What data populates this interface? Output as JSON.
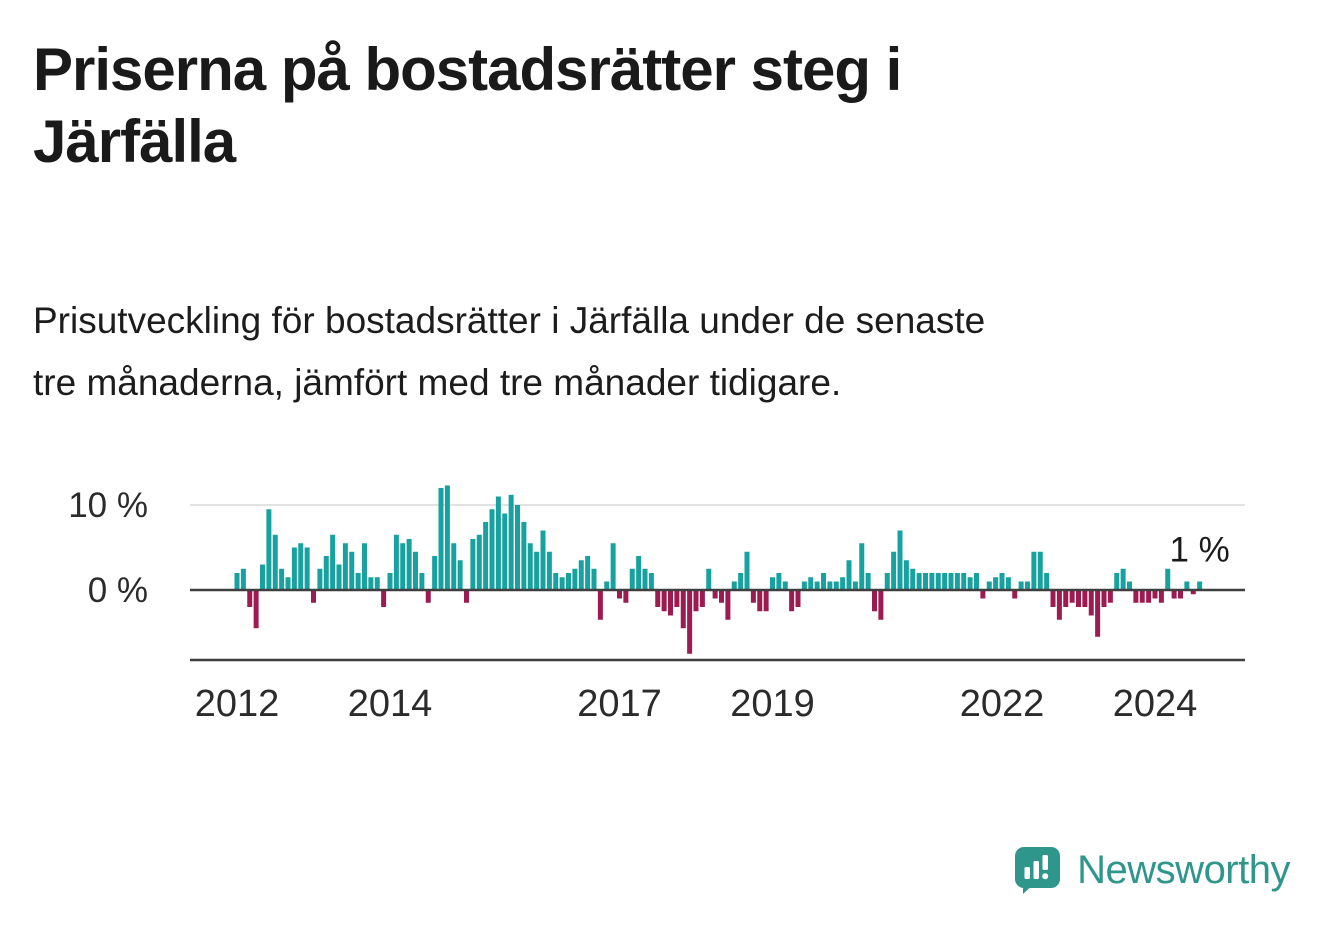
{
  "page": {
    "title_lines": [
      "Priserna på bostadsrätter steg i",
      "Järfälla"
    ],
    "subtitle_lines": [
      "Prisutveckling för bostadsrätter i Järfälla under de senaste",
      "tre månaderna, jämfört med tre månader tidigare."
    ]
  },
  "branding": {
    "logo_text": "Newsworthy",
    "logo_color": "#2f968c",
    "logo_icon": "bar-chart-speech-bubble-icon"
  },
  "chart_data": {
    "type": "bar",
    "title": "",
    "xlabel": "",
    "ylabel": "",
    "unit": "%",
    "frequency": "monthly",
    "x_start": "2012-01",
    "x_end": "2024-08",
    "ylim": [
      -8,
      13
    ],
    "grid": "single horizontal gridline at 10 %",
    "legend": "none",
    "y_tick_labels": [
      "10 %",
      "0 %"
    ],
    "y_tick_values": [
      10,
      0
    ],
    "x_tick_labels": [
      "2012",
      "2014",
      "2017",
      "2019",
      "2022",
      "2024"
    ],
    "annotation": {
      "text": "1 %",
      "applies_to": "last_bar",
      "value": 1
    },
    "positive_color": "#17a2a0",
    "negative_color": "#9c1b50",
    "values": [
      2,
      2.5,
      -2,
      -4.5,
      3,
      9.5,
      6.5,
      2.5,
      1.5,
      5,
      5.5,
      5,
      -1.5,
      2.5,
      4,
      6.5,
      3,
      5.5,
      4.5,
      2,
      5.5,
      1.5,
      1.5,
      -2,
      2,
      6.5,
      5.5,
      6,
      4.5,
      2,
      -1.5,
      4,
      12,
      12.3,
      5.5,
      3.5,
      -1.5,
      6,
      6.5,
      8,
      9.5,
      11,
      9,
      11.2,
      10,
      8,
      5.5,
      4.5,
      7,
      4.5,
      2,
      1.5,
      2,
      2.5,
      3.5,
      4,
      2.5,
      -3.5,
      1,
      5.5,
      -1,
      -1.5,
      2.5,
      4,
      2.5,
      2,
      -2,
      -2.5,
      -3,
      -2,
      -4.5,
      -7.5,
      -2.5,
      -2,
      2.5,
      -1,
      -1.5,
      -3.5,
      1,
      2,
      4.5,
      -1.5,
      -2.5,
      -2.5,
      1.5,
      2,
      1,
      -2.5,
      -2,
      1,
      1.5,
      1,
      2,
      1,
      1,
      1.5,
      3.5,
      1,
      5.5,
      2,
      -2.5,
      -3.5,
      2,
      4.5,
      7,
      3.5,
      2.5,
      2,
      2,
      2,
      2,
      2,
      2,
      2,
      2,
      1.5,
      2,
      -1,
      1,
      1.5,
      2,
      1.5,
      -1,
      1,
      1,
      4.5,
      4.5,
      2,
      -2,
      -3.5,
      -2,
      -1.5,
      -2,
      -2,
      -3,
      -5.5,
      -2,
      -1.5,
      2,
      2.5,
      1,
      -1.5,
      -1.5,
      -1.5,
      -1,
      -1.5,
      2.5,
      -1,
      -1,
      1,
      -0.5,
      1
    ]
  }
}
